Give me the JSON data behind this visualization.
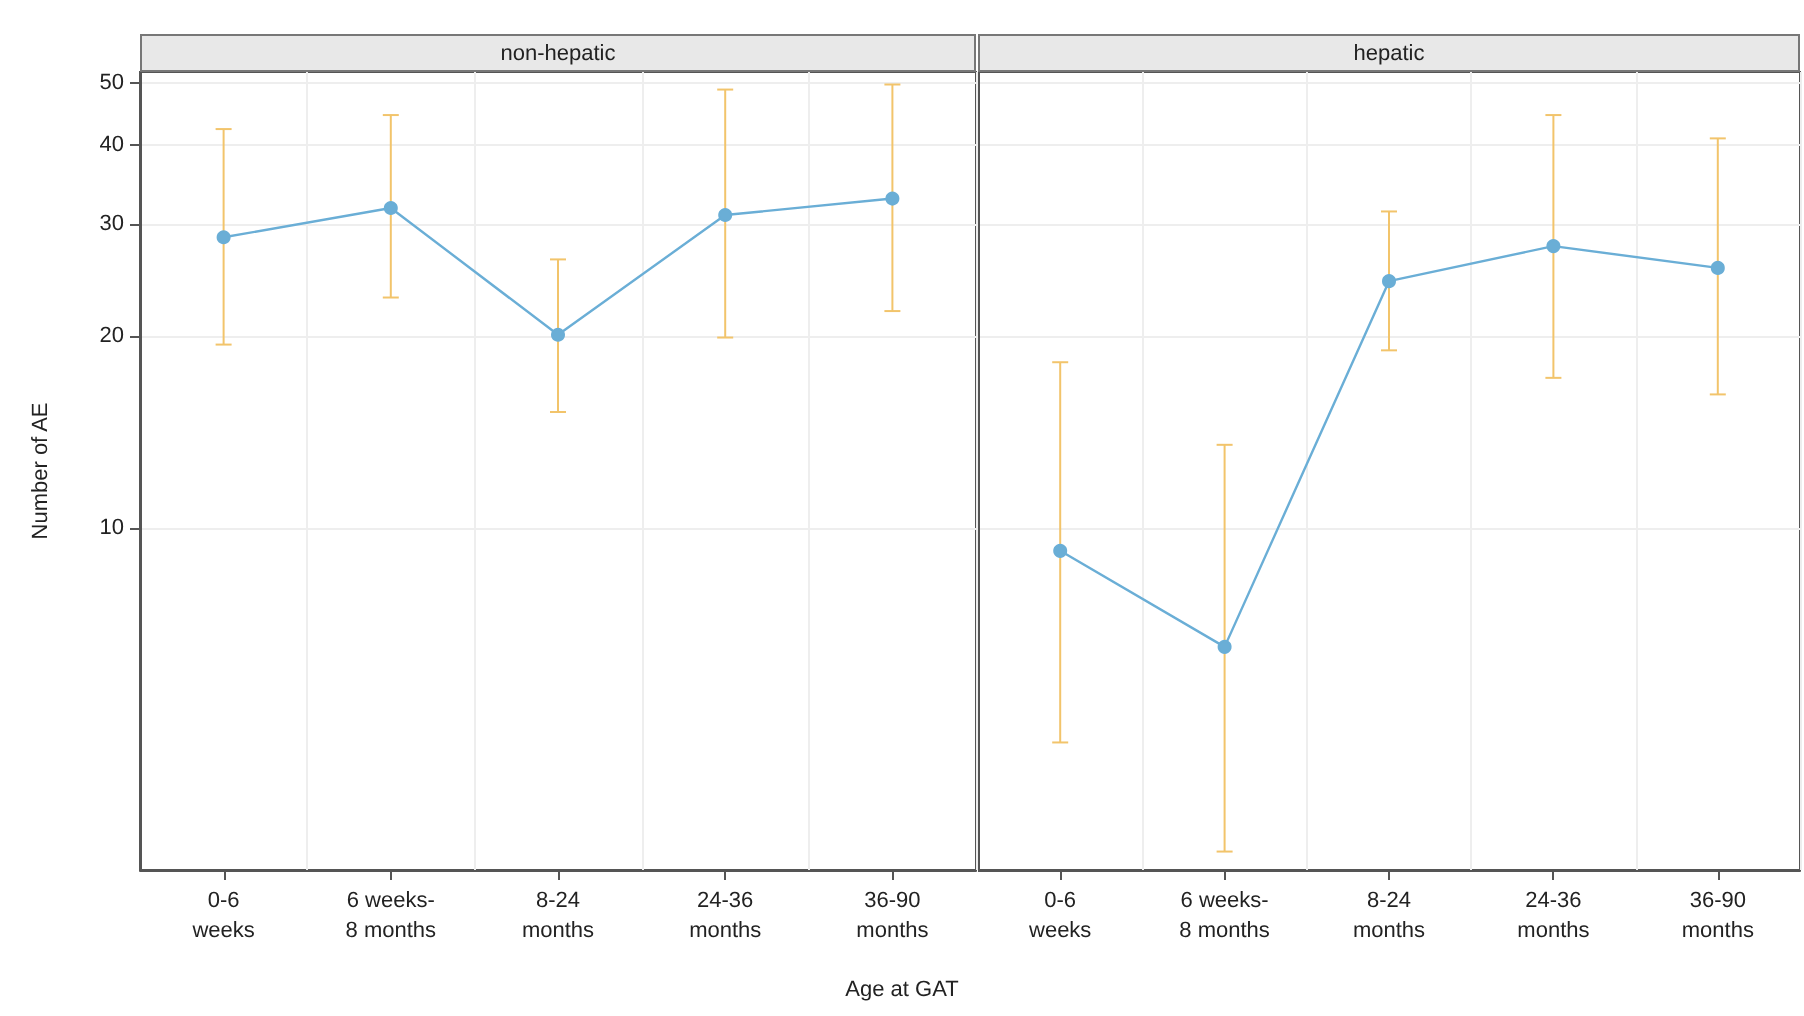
{
  "chart_data": [
    {
      "type": "line",
      "title": "non-hepatic",
      "ylabel": "Number of AE",
      "categories": [
        "0-6\nweeks",
        "6 weeks-\n8 months",
        "8-24\nmonths",
        "24-36\nmonths",
        "36-90\nmonths"
      ],
      "series": [
        {
          "color": "#6aaed6",
          "values": [
            28.6,
            31.8,
            20.1,
            31.0,
            32.9
          ],
          "errors": [
            [
              19.4,
              42.3
            ],
            [
              23.0,
              44.5
            ],
            [
              15.2,
              26.4
            ],
            [
              19.9,
              48.8
            ],
            [
              21.9,
              49.7
            ]
          ]
        }
      ],
      "log": "y",
      "ylim": [
        2.9,
        52
      ],
      "yticks": [
        10,
        20,
        30,
        40,
        50
      ],
      "grid": true,
      "marker": "circle"
    },
    {
      "type": "line",
      "title": "hepatic",
      "xlabel": "Age at GAT",
      "categories": [
        "0-6\nweeks",
        "6 weeks-\n8 months",
        "8-24\nmonths",
        "24-36\nmonths",
        "36-90\nmonths"
      ],
      "series": [
        {
          "color": "#6aaed6",
          "values": [
            9.2,
            6.5,
            24.4,
            27.7,
            25.6
          ],
          "errors": [
            [
              4.6,
              18.2
            ],
            [
              3.1,
              13.5
            ],
            [
              19.0,
              31.4
            ],
            [
              17.2,
              44.5
            ],
            [
              16.2,
              40.9
            ]
          ]
        }
      ],
      "log": "y",
      "ylim": [
        2.9,
        52
      ],
      "yticks": [
        10,
        20,
        30,
        40,
        50
      ],
      "grid": true,
      "marker": "circle",
      "tick_labels": "x"
    }
  ]
}
